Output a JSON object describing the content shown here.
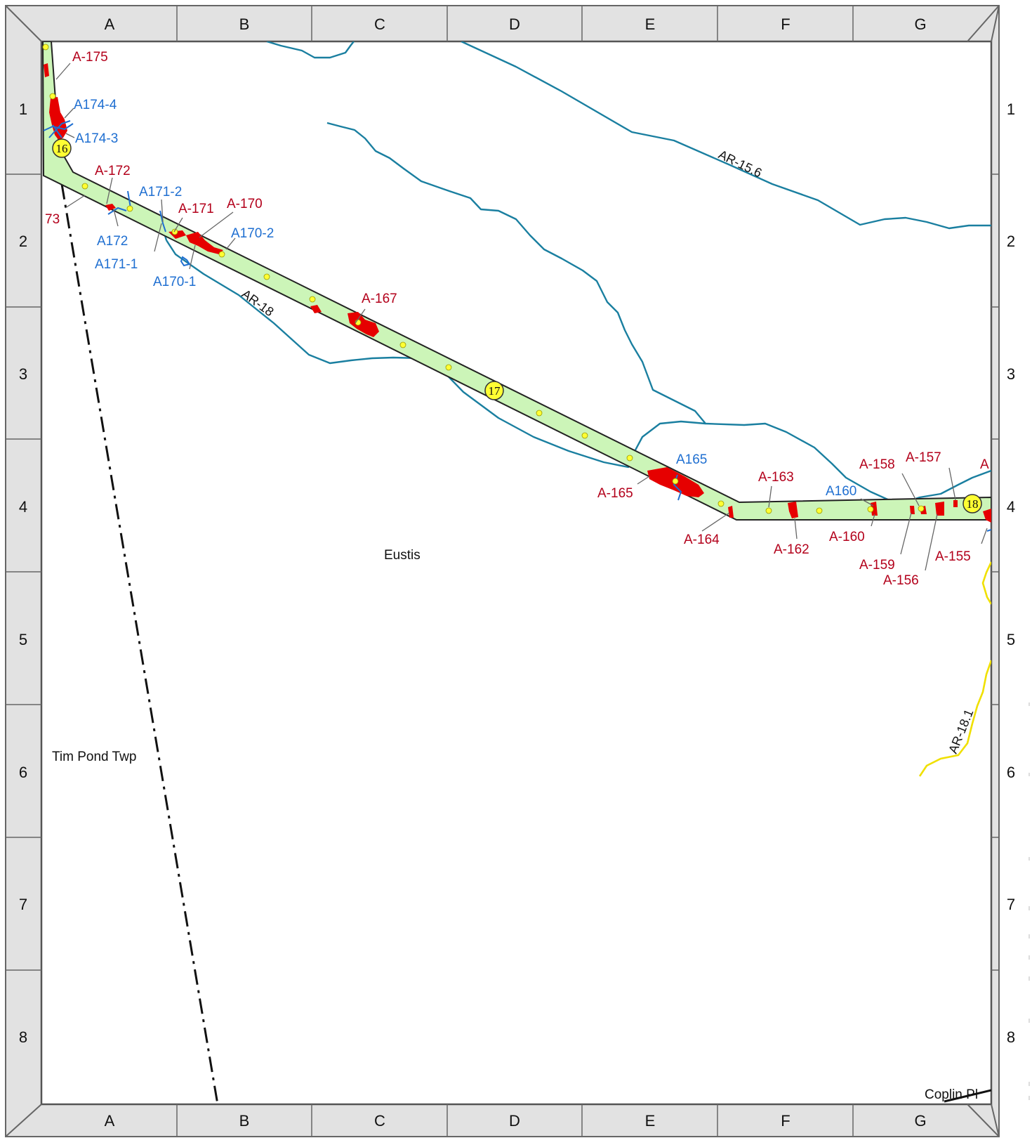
{
  "grid": {
    "columns": [
      "A",
      "B",
      "C",
      "D",
      "E",
      "F",
      "G"
    ],
    "rows": [
      "1",
      "2",
      "3",
      "4",
      "5",
      "6",
      "7",
      "8"
    ]
  },
  "towns": {
    "eustis": "Eustis",
    "tim_pond": "Tim Pond Twp",
    "coplin": "Coplin Pl"
  },
  "streams": {
    "ar_15_6": "AR-15.6",
    "ar_18": "AR-18",
    "ar_18_1": "AR-18.1"
  },
  "mileposts": {
    "m16": "16",
    "m17": "17",
    "m18": "18"
  },
  "wetlands": {
    "a175": "A-175",
    "a173": "73",
    "a172": "A-172",
    "a171": "A-171",
    "a170": "A-170",
    "a167": "A-167",
    "a165": "A-165",
    "a164": "A-164",
    "a163": "A-163",
    "a162": "A-162",
    "a160": "A-160",
    "a159": "A-159",
    "a158": "A-158",
    "a157": "A-157",
    "a156": "A-156",
    "a155": "A-155",
    "a_cut": "A"
  },
  "crossings": {
    "a174_4": "A174-4",
    "a174_3": "A174-3",
    "a171_2": "A171-2",
    "a172": "A172",
    "a171_1": "A171-1",
    "a170_2": "A170-2",
    "a170_1": "A170-1",
    "a165": "A165",
    "a160": "A160"
  },
  "colors": {
    "corridor": "#ccf5b8",
    "wetland": "#e60000",
    "stream": "#1a7fa0",
    "wetland_label": "#b3001b",
    "crossing_label": "#1f6fd1",
    "frame": "#e2e2e2"
  }
}
